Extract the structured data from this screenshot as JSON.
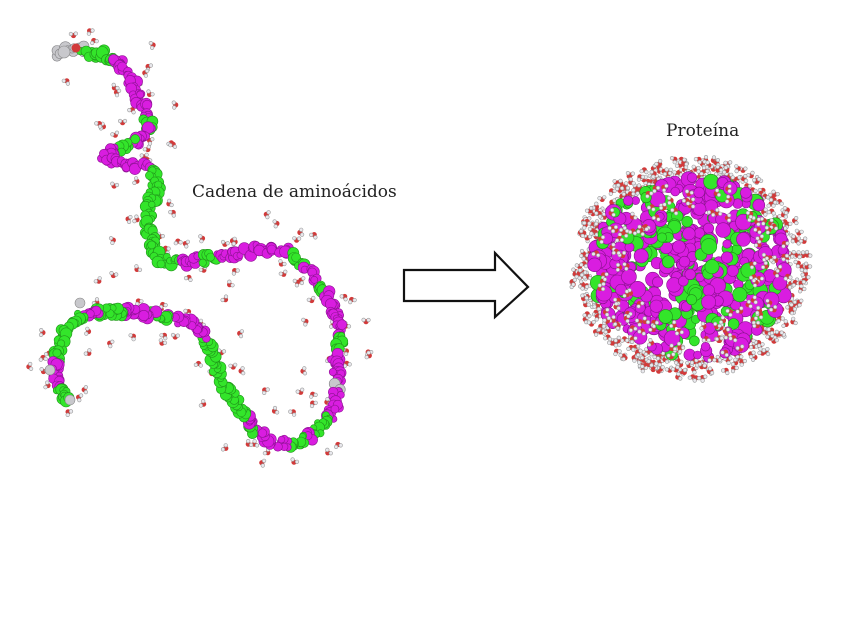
{
  "labels": {
    "chain": "Cadena de aminoácidos",
    "protein": "Proteína"
  },
  "colors": {
    "background": "#ffffff",
    "hydrophobic": "#33e52a",
    "polar": "#d91de0",
    "terminal": "#c8c8cc",
    "water_oxygen": "#d23a3a",
    "water_hydrogen": "#e9e9ee",
    "arrow_stroke": "#111111",
    "arrow_fill": "#ffffff"
  },
  "icons": {
    "transition": "right-arrow-icon"
  }
}
